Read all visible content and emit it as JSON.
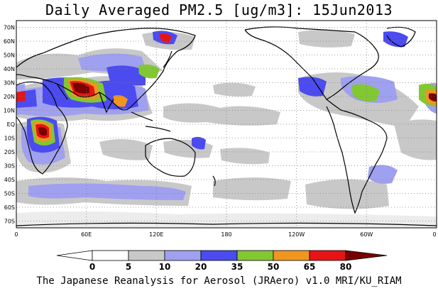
{
  "title": "Daily Averaged PM2.5 [ug/m3]: 15Jun2013",
  "footer": "The Japanese Reanalysis for Aerosol (JRAero) v1.0 MRI/KU_RIAM",
  "map": {
    "projection": "equirectangular",
    "lon_range": [
      0,
      360
    ],
    "lat_range": [
      -75,
      75
    ],
    "gridlines": "dotted",
    "lat_labels": [
      "70N",
      "60N",
      "50N",
      "40N",
      "30N",
      "20N",
      "10N",
      "EQ",
      "10S",
      "20S",
      "30S",
      "40S",
      "50S",
      "60S",
      "70S"
    ],
    "lon_labels": [
      "0",
      "60E",
      "120E",
      "180",
      "120W",
      "60W",
      "0"
    ]
  },
  "colorbar": {
    "levels": [
      "0",
      "5",
      "10",
      "20",
      "35",
      "50",
      "65",
      "80"
    ],
    "colors": [
      "#ffffff",
      "#c8c8c8",
      "#a0a0f0",
      "#4b4bf0",
      "#82c832",
      "#f0961e",
      "#e61414",
      "#780000"
    ]
  }
}
